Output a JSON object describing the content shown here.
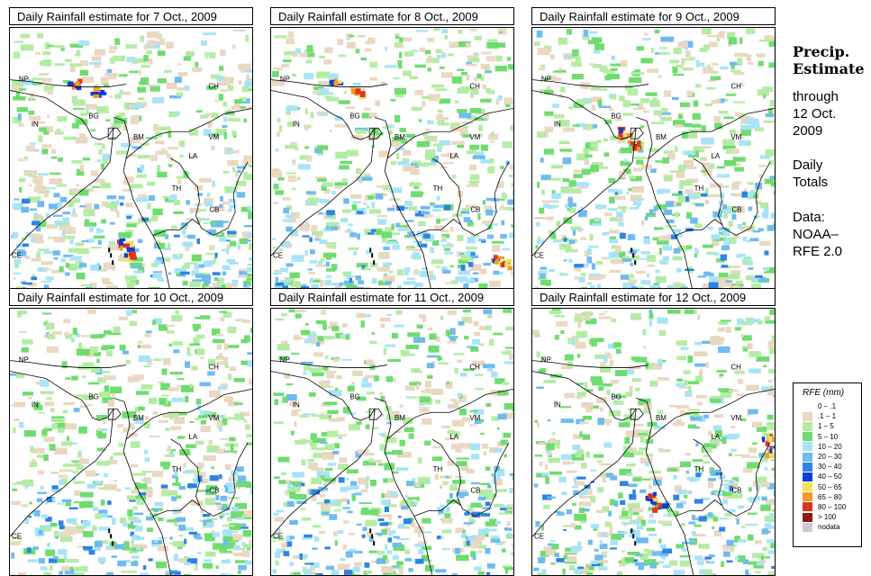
{
  "panels": [
    {
      "title": "Daily Rainfall estimate for  7 Oct., 2009",
      "hotspots": [
        "bg-north",
        "sw-sea"
      ]
    },
    {
      "title": "Daily Rainfall estimate for  8 Oct., 2009",
      "hotspots": [
        "bg-north",
        "se-corner"
      ]
    },
    {
      "title": "Daily Rainfall estimate for  9 Oct., 2009",
      "hotspots": [
        "bm-coast"
      ]
    },
    {
      "title": "Daily Rainfall estimate for  10 Oct., 2009",
      "hotspots": []
    },
    {
      "title": "Daily Rainfall estimate for  11 Oct., 2009",
      "hotspots": []
    },
    {
      "title": "Daily Rainfall estimate for  12 Oct., 2009",
      "hotspots": [
        "andaman",
        "east-edge"
      ]
    }
  ],
  "map_labels": [
    "NP",
    "CH",
    "IN",
    "BG",
    "BM",
    "VM",
    "LA",
    "TH",
    "CB",
    "CE"
  ],
  "sidebar": {
    "title_line1": "Precip.",
    "title_line2": "Estimate",
    "through": "through",
    "date_line1": "12 Oct.",
    "date_line2": "2009",
    "daily_line1": "Daily",
    "daily_line2": "Totals",
    "data_line1": "Data:",
    "data_line2": "NOAA–",
    "data_line3": "RFE 2.0"
  },
  "legend": {
    "title": "RFE (mm)",
    "items": [
      {
        "label": "0 – .1",
        "color": "#ffffff"
      },
      {
        "label": ".1 – 1",
        "color": "#e9d8c2"
      },
      {
        "label": "1 – 5",
        "color": "#b4eca4"
      },
      {
        "label": "5 – 10",
        "color": "#6fdc6f"
      },
      {
        "label": "10 – 20",
        "color": "#a7e4f7"
      },
      {
        "label": "20 – 30",
        "color": "#6fbbf0"
      },
      {
        "label": "30 – 40",
        "color": "#2e83e3"
      },
      {
        "label": "40 – 50",
        "color": "#0e3cd6"
      },
      {
        "label": "50 – 65",
        "color": "#f6e05a"
      },
      {
        "label": "65 – 80",
        "color": "#f49a2a"
      },
      {
        "label": "80 – 100",
        "color": "#e0331d"
      },
      {
        "label": "> 100",
        "color": "#8b1a14"
      },
      {
        "label": "nodata",
        "color": "#cbcbcb"
      }
    ]
  }
}
